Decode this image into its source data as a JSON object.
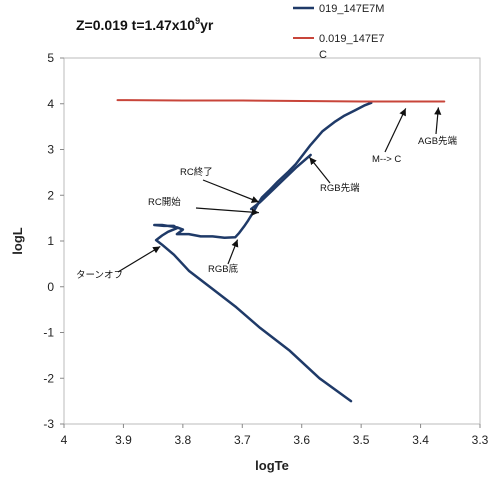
{
  "chart_data": {
    "type": "line",
    "title_main": "Z=0.019  t=1.47x10",
    "title_exp": "9",
    "title_suffix": "yr",
    "xlabel": "logTe",
    "ylabel": "logL",
    "xlim": [
      4.0,
      3.3
    ],
    "ylim": [
      -3,
      5
    ],
    "x_ticks": [
      "4",
      "3.9",
      "3.8",
      "3.7",
      "3.6",
      "3.5",
      "3.4",
      "3.3"
    ],
    "y_ticks": [
      "-3",
      "-2",
      "-1",
      "0",
      "1",
      "2",
      "3",
      "4",
      "5"
    ],
    "grid": false,
    "legend_position": "top-right",
    "series": [
      {
        "name": "019_147E7M",
        "color": "#1f3a68",
        "x": [
          3.517,
          3.57,
          3.62,
          3.67,
          3.71,
          3.75,
          3.79,
          3.815,
          3.835,
          3.845,
          3.835,
          3.825,
          3.81,
          3.815,
          3.832,
          3.848,
          3.835,
          3.81,
          3.8,
          3.81,
          3.79,
          3.77,
          3.75,
          3.73,
          3.712,
          3.705,
          3.697,
          3.69,
          3.682,
          3.675,
          3.667,
          3.655,
          3.64,
          3.622,
          3.61,
          3.597,
          3.585,
          3.575,
          3.565,
          3.555,
          3.545,
          3.528,
          3.51,
          3.495,
          3.483
        ],
        "y": [
          -2.5,
          -2.0,
          -1.4,
          -0.9,
          -0.45,
          -0.05,
          0.35,
          0.7,
          0.92,
          1.02,
          1.12,
          1.2,
          1.28,
          1.33,
          1.33,
          1.35,
          1.35,
          1.3,
          1.25,
          1.15,
          1.15,
          1.1,
          1.1,
          1.07,
          1.08,
          1.18,
          1.32,
          1.45,
          1.62,
          1.78,
          1.95,
          2.1,
          2.3,
          2.52,
          2.68,
          2.9,
          3.1,
          3.25,
          3.4,
          3.5,
          3.6,
          3.74,
          3.86,
          3.96,
          4.02
        ]
      },
      {
        "name": "0.019_147E7",
        "name_line2": "C",
        "color": "#c8453a",
        "x": [
          3.91,
          3.8,
          3.7,
          3.6,
          3.5,
          3.45,
          3.4,
          3.36
        ],
        "y": [
          4.08,
          4.07,
          4.07,
          4.06,
          4.05,
          4.05,
          4.05,
          4.05
        ]
      },
      {
        "name": "",
        "color": "#1f3a68",
        "x": [
          3.685,
          3.67,
          3.65,
          3.63,
          3.61,
          3.585
        ],
        "y": [
          1.7,
          1.85,
          2.1,
          2.35,
          2.6,
          2.88
        ]
      }
    ],
    "annotations": [
      {
        "text": "RC終了",
        "x": 3.672,
        "y": 1.85
      },
      {
        "text": "RC開始",
        "x": 3.672,
        "y": 1.62
      },
      {
        "text": "ターンオフ",
        "x": 3.838,
        "y": 0.88
      },
      {
        "text": "RGB底",
        "x": 3.708,
        "y": 1.03
      },
      {
        "text": "RGB先端",
        "x": 3.587,
        "y": 2.83
      },
      {
        "text": "M--> C",
        "x": 3.425,
        "y": 3.9
      },
      {
        "text": "AGB先端",
        "x": 3.37,
        "y": 3.92
      }
    ]
  }
}
